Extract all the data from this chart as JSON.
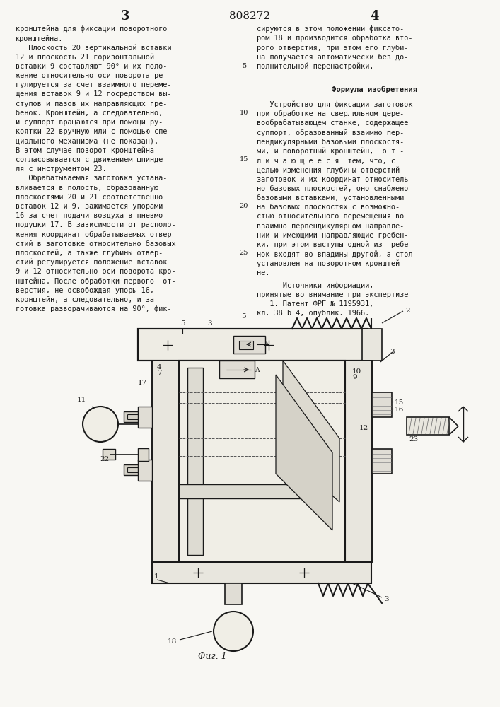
{
  "background_color": "#f8f7f3",
  "text_color": "#1a1a1a",
  "page_num_left": "3",
  "page_num_center": "808272",
  "page_num_right": "4",
  "left_col_lines": [
    "кронштейна для фиксации поворотного",
    "кронштейна.",
    "   Плоскость 20 вертикальной вставки",
    "12 и плоскость 21 горизонтальной",
    "вставки 9 составляют 90° и их поло-",
    "жение относительно оси поворота ре-",
    "гулируется за счет взаимного переме-",
    "щения вставок 9 и 12 посредством вы-",
    "ступов и пазов их направляющих гре-",
    "бенок. Кронштейн, а следовательно,",
    "и суппорт вращаются при помощи ру-",
    "коятки 22 вручную или с помощью спе-",
    "циального механизма (не показан).",
    "В этом случае поворот кронштейна",
    "согласовывается с движением шпинде-",
    "ля с инструментом 23.",
    "   Обрабатываемая заготовка устана-",
    "вливается в полость, образованную",
    "плоскостями 20 и 21 соответственно",
    "вставок 12 и 9, зажимается упорами",
    "16 за счет подачи воздуха в пневмо-",
    "подушки 17. В зависимости от располо-",
    "жения координат обрабатываемых отвер-",
    "стий в заготовке относительно базовых",
    "плоскостей, а также глубины отвер-",
    "стий регулируется положение вставок",
    "9 и 12 относительно оси поворота кро-",
    "нштейна. После обработки первого  от-",
    "верстия, не освобождая упоры 16,",
    "кронштейн, а следовательно, и за-",
    "готовка разворачиваются на 90°, фик-"
  ],
  "right_col_top_lines": [
    "сируются в этом положении фиксато-",
    "ром 18 и производится обработка вто-",
    "рого отверстия, при этом его глуби-",
    "на получается автоматически без до-",
    "полнительной перенастройки."
  ],
  "formula_title": "Формула изобретения",
  "formula_lines": [
    "   Устройство для фиксации заготовок",
    "при обработке на сверлильном дере-",
    "вообрабатывающем станке, содержащее",
    "суппорт, образованный взаимно пер-",
    "пендикулярными базовыми плоскостя-",
    "ми, и поворотный кронштейн,  о т -",
    "л и ч а ю щ е е с я  тем, что, с",
    "целью изменения глубины отверстий",
    "заготовок и их координат относитель-",
    "но базовых плоскостей, оно снабжено",
    "базовыми вставками, установленными",
    "на базовых плоскостях с возможно-",
    "стью относительного перемещения во",
    "взаимно перпендикулярном направле-",
    "нии и имеющими направляющие гребен-",
    "ки, при этом выступы одной из гребе-",
    "нок входят во впадины другой, а стол",
    "установлен на поворотном кронштей-",
    "не."
  ],
  "sources_lines": [
    "      Источники информации,",
    "принятые во внимание при экспертизе",
    "   1. Патент ФРГ № 1195931,",
    "кл. 38 b 4, опублик. 1966."
  ],
  "figure_caption": "Фиг. 1",
  "line_numbers": [
    "5",
    "10",
    "15",
    "20",
    "25"
  ],
  "line_number_indices": [
    4,
    9,
    14,
    19,
    24
  ]
}
